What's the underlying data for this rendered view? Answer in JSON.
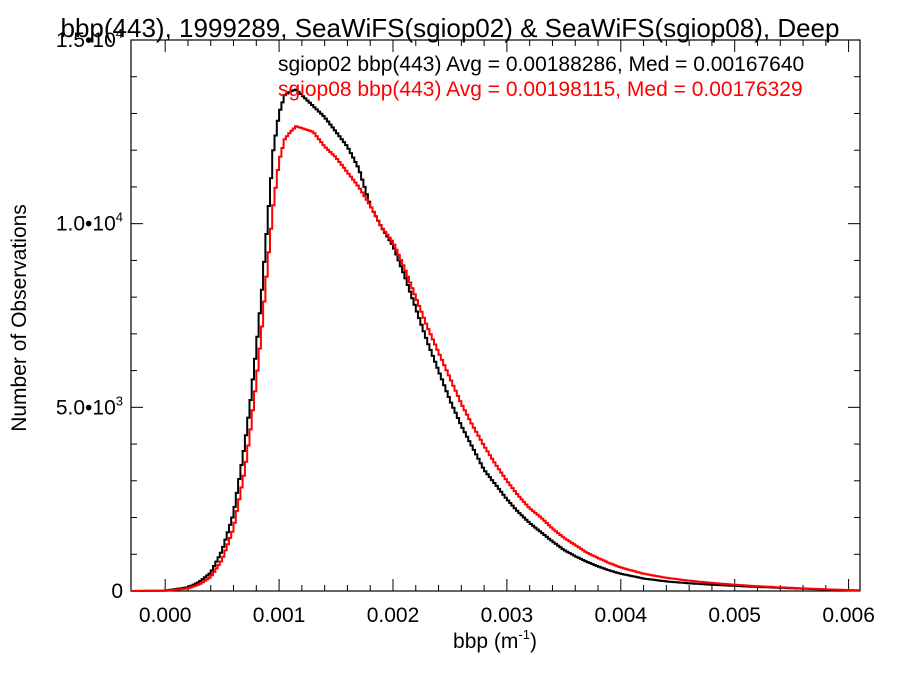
{
  "chart_data": {
    "type": "line",
    "title": "bbp(443), 1999289, SeaWiFS(sgiop02) & SeaWiFS(sgiop08), Deep",
    "xlabel": "bbp (m",
    "xlabel_sup": "-1",
    "xlabel_close": ")",
    "ylabel": "Number of Observations",
    "xlim": [
      -0.0003,
      0.0061
    ],
    "ylim": [
      0,
      15000
    ],
    "x_ticks": [
      {
        "value": 0.0,
        "label": "0.000"
      },
      {
        "value": 0.001,
        "label": "0.001"
      },
      {
        "value": 0.002,
        "label": "0.002"
      },
      {
        "value": 0.003,
        "label": "0.003"
      },
      {
        "value": 0.004,
        "label": "0.004"
      },
      {
        "value": 0.005,
        "label": "0.005"
      },
      {
        "value": 0.006,
        "label": "0.006"
      }
    ],
    "y_ticks": [
      {
        "value": 0,
        "mant": "0",
        "exp": ""
      },
      {
        "value": 5000,
        "mant": "5.0•10",
        "exp": "3"
      },
      {
        "value": 10000,
        "mant": "1.0•10",
        "exp": "4"
      },
      {
        "value": 15000,
        "mant": "1.5•10",
        "exp": "4"
      }
    ],
    "grid": false,
    "legend_position": "top-right",
    "series": [
      {
        "name": "sgiop02",
        "legend_text": "sgiop02 bbp(443) Avg = 0.00188286, Med = 0.00167640",
        "color": "#000000",
        "points": [
          [
            -0.0003,
            0
          ],
          [
            0.0,
            10
          ],
          [
            0.0002,
            100
          ],
          [
            0.0003,
            250
          ],
          [
            0.0004,
            500
          ],
          [
            0.0005,
            1100
          ],
          [
            0.0006,
            2100
          ],
          [
            0.0007,
            4000
          ],
          [
            0.00075,
            5200
          ],
          [
            0.0008,
            6600
          ],
          [
            0.00085,
            8200
          ],
          [
            0.0009,
            10100
          ],
          [
            0.00095,
            12000
          ],
          [
            0.001,
            13000
          ],
          [
            0.00105,
            13500
          ],
          [
            0.0011,
            13600
          ],
          [
            0.00115,
            13650
          ],
          [
            0.0012,
            13500
          ],
          [
            0.0013,
            13200
          ],
          [
            0.0014,
            12900
          ],
          [
            0.0015,
            12500
          ],
          [
            0.0016,
            12100
          ],
          [
            0.0017,
            11500
          ],
          [
            0.0018,
            10500
          ],
          [
            0.0019,
            9900
          ],
          [
            0.002,
            9400
          ],
          [
            0.0021,
            8600
          ],
          [
            0.0022,
            7700
          ],
          [
            0.0023,
            6800
          ],
          [
            0.0024,
            6000
          ],
          [
            0.0025,
            5200
          ],
          [
            0.0026,
            4500
          ],
          [
            0.0027,
            3900
          ],
          [
            0.0028,
            3300
          ],
          [
            0.0029,
            2900
          ],
          [
            0.003,
            2500
          ],
          [
            0.0031,
            2150
          ],
          [
            0.0032,
            1850
          ],
          [
            0.0033,
            1600
          ],
          [
            0.0034,
            1350
          ],
          [
            0.0035,
            1120
          ],
          [
            0.0036,
            950
          ],
          [
            0.0037,
            800
          ],
          [
            0.0038,
            670
          ],
          [
            0.0039,
            560
          ],
          [
            0.004,
            470
          ],
          [
            0.0042,
            340
          ],
          [
            0.0044,
            260
          ],
          [
            0.0046,
            210
          ],
          [
            0.0048,
            170
          ],
          [
            0.005,
            140
          ],
          [
            0.0052,
            110
          ],
          [
            0.0055,
            75
          ],
          [
            0.0058,
            40
          ],
          [
            0.006,
            20
          ],
          [
            0.0061,
            15
          ]
        ]
      },
      {
        "name": "sgiop08",
        "legend_text": "sgiop08 bbp(443) Avg = 0.00198115, Med = 0.00176329",
        "color": "#ff0000",
        "points": [
          [
            -0.0003,
            0
          ],
          [
            0.0,
            5
          ],
          [
            0.0002,
            70
          ],
          [
            0.0003,
            180
          ],
          [
            0.0004,
            380
          ],
          [
            0.0005,
            850
          ],
          [
            0.0006,
            1700
          ],
          [
            0.0007,
            3300
          ],
          [
            0.00075,
            4400
          ],
          [
            0.0008,
            5700
          ],
          [
            0.00085,
            7200
          ],
          [
            0.0009,
            8900
          ],
          [
            0.00095,
            10500
          ],
          [
            0.001,
            11700
          ],
          [
            0.00105,
            12300
          ],
          [
            0.0011,
            12500
          ],
          [
            0.00115,
            12650
          ],
          [
            0.0012,
            12600
          ],
          [
            0.0013,
            12500
          ],
          [
            0.0014,
            12100
          ],
          [
            0.0015,
            11800
          ],
          [
            0.0016,
            11400
          ],
          [
            0.0017,
            11000
          ],
          [
            0.0018,
            10500
          ],
          [
            0.0019,
            9900
          ],
          [
            0.002,
            9500
          ],
          [
            0.0021,
            8800
          ],
          [
            0.0022,
            8000
          ],
          [
            0.0023,
            7200
          ],
          [
            0.0024,
            6500
          ],
          [
            0.0025,
            5800
          ],
          [
            0.0026,
            5100
          ],
          [
            0.0027,
            4500
          ],
          [
            0.0028,
            3950
          ],
          [
            0.0029,
            3450
          ],
          [
            0.003,
            3000
          ],
          [
            0.0031,
            2600
          ],
          [
            0.0032,
            2250
          ],
          [
            0.0033,
            2000
          ],
          [
            0.0034,
            1700
          ],
          [
            0.0035,
            1450
          ],
          [
            0.0036,
            1250
          ],
          [
            0.0037,
            1050
          ],
          [
            0.0038,
            900
          ],
          [
            0.0039,
            760
          ],
          [
            0.004,
            640
          ],
          [
            0.0042,
            470
          ],
          [
            0.0044,
            360
          ],
          [
            0.0046,
            280
          ],
          [
            0.0048,
            220
          ],
          [
            0.005,
            170
          ],
          [
            0.0052,
            130
          ],
          [
            0.0055,
            85
          ],
          [
            0.0058,
            45
          ],
          [
            0.006,
            25
          ],
          [
            0.0061,
            18
          ]
        ]
      }
    ]
  }
}
